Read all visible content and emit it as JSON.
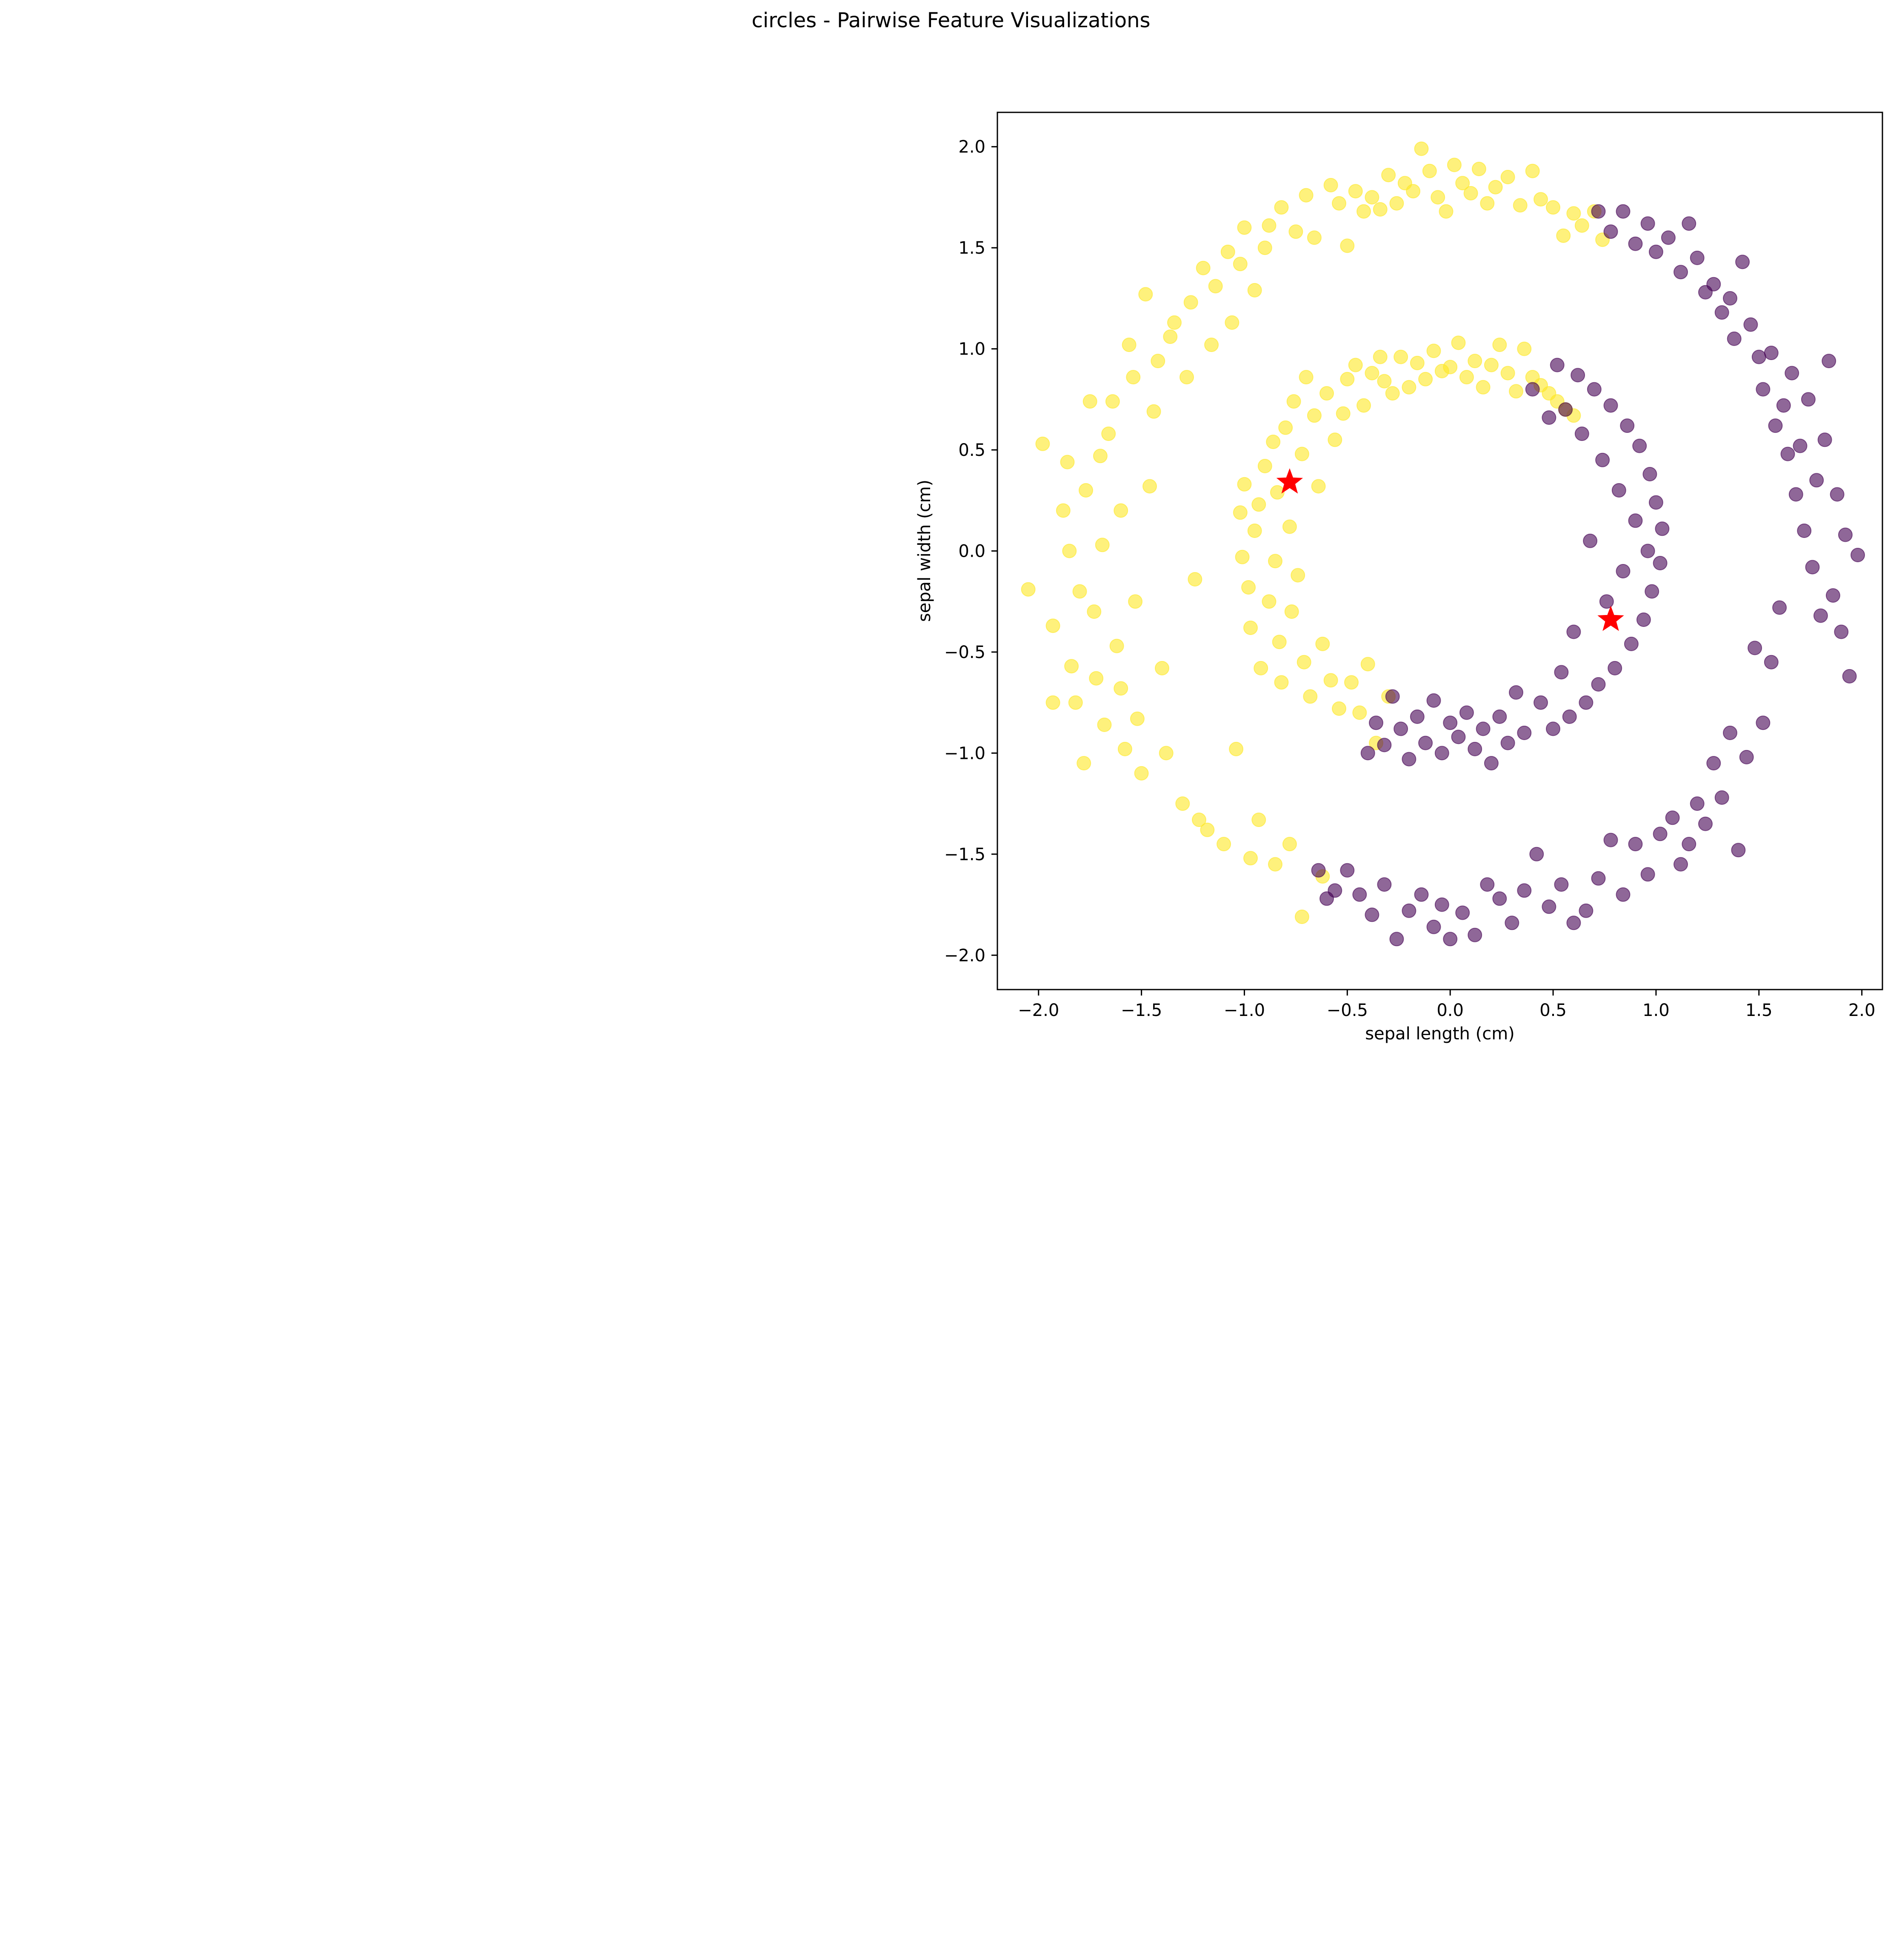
{
  "chart_data": {
    "type": "scatter",
    "title": "circles - Pairwise Feature Visualizations",
    "xlabel": "sepal length (cm)",
    "ylabel": "sepal width (cm)",
    "xlim": [
      -2.2,
      2.1
    ],
    "ylim": [
      -2.17,
      2.17
    ],
    "xticks": [
      -2.0,
      -1.5,
      -1.0,
      -0.5,
      0.0,
      0.5,
      1.0,
      1.5,
      2.0
    ],
    "xtick_labels": [
      "−2.0",
      "−1.5",
      "−1.0",
      "−0.5",
      "0.0",
      "0.5",
      "1.0",
      "1.5",
      "2.0"
    ],
    "yticks": [
      2.0,
      1.5,
      1.0,
      0.5,
      0.0,
      -0.5,
      -1.0,
      -1.5,
      -2.0
    ],
    "ytick_labels": [
      "2.0",
      "1.5",
      "1.0",
      "0.5",
      "0.0",
      "−0.5",
      "−1.0",
      "−1.5",
      "−2.0"
    ],
    "grid": false,
    "colors": {
      "cluster_0": "#fde725",
      "cluster_1": "#440154",
      "centroid": "#ff0000"
    },
    "point_alpha": 0.6,
    "series": [
      {
        "color": "#fde725",
        "points": [
          [
            -1.98,
            0.53
          ],
          [
            -2.05,
            -0.19
          ],
          [
            -1.93,
            -0.37
          ],
          [
            -1.93,
            -0.75
          ],
          [
            -1.88,
            0.2
          ],
          [
            -1.86,
            0.44
          ],
          [
            -1.85,
            0.0
          ],
          [
            -1.84,
            -0.57
          ],
          [
            -1.82,
            -0.75
          ],
          [
            -1.8,
            -0.2
          ],
          [
            -1.78,
            -1.05
          ],
          [
            -1.77,
            0.3
          ],
          [
            -1.75,
            0.74
          ],
          [
            -1.73,
            -0.3
          ],
          [
            -1.72,
            -0.63
          ],
          [
            -1.7,
            0.47
          ],
          [
            -1.69,
            0.03
          ],
          [
            -1.68,
            -0.86
          ],
          [
            -1.66,
            0.58
          ],
          [
            -1.64,
            0.74
          ],
          [
            -1.62,
            -0.47
          ],
          [
            -1.6,
            0.2
          ],
          [
            -1.6,
            -0.68
          ],
          [
            -1.58,
            -0.98
          ],
          [
            -1.56,
            1.02
          ],
          [
            -1.54,
            0.86
          ],
          [
            -1.53,
            -0.25
          ],
          [
            -1.52,
            -0.83
          ],
          [
            -1.5,
            -1.1
          ],
          [
            -1.48,
            1.27
          ],
          [
            -1.46,
            0.32
          ],
          [
            -1.44,
            0.69
          ],
          [
            -1.42,
            0.94
          ],
          [
            -1.4,
            -0.58
          ],
          [
            -1.38,
            -1.0
          ],
          [
            -1.36,
            1.06
          ],
          [
            -1.34,
            1.13
          ],
          [
            -1.3,
            -1.25
          ],
          [
            -1.28,
            0.86
          ],
          [
            -1.26,
            1.23
          ],
          [
            -1.24,
            -0.14
          ],
          [
            -1.22,
            -1.33
          ],
          [
            -1.2,
            1.4
          ],
          [
            -1.18,
            -1.38
          ],
          [
            -1.16,
            1.02
          ],
          [
            -1.14,
            1.31
          ],
          [
            -1.1,
            -1.45
          ],
          [
            -1.08,
            1.48
          ],
          [
            -1.06,
            1.13
          ],
          [
            -1.04,
            -0.98
          ],
          [
            -1.02,
            1.42
          ],
          [
            -1.0,
            1.6
          ],
          [
            -0.97,
            -1.52
          ],
          [
            -0.95,
            1.29
          ],
          [
            -0.93,
            -1.33
          ],
          [
            -0.9,
            1.5
          ],
          [
            -0.88,
            1.61
          ],
          [
            -0.85,
            -1.55
          ],
          [
            -0.82,
            1.7
          ],
          [
            -0.78,
            -1.45
          ],
          [
            -0.75,
            1.58
          ],
          [
            -0.72,
            -1.81
          ],
          [
            -0.7,
            1.76
          ],
          [
            -0.66,
            1.55
          ],
          [
            -0.62,
            -1.61
          ],
          [
            -0.58,
            1.81
          ],
          [
            -0.54,
            1.72
          ],
          [
            -0.5,
            1.51
          ],
          [
            -0.46,
            1.78
          ],
          [
            -0.42,
            1.68
          ],
          [
            -0.38,
            1.75
          ],
          [
            -0.34,
            1.69
          ],
          [
            -0.3,
            1.86
          ],
          [
            -0.26,
            1.72
          ],
          [
            -0.22,
            1.82
          ],
          [
            -0.18,
            1.78
          ],
          [
            -0.14,
            1.99
          ],
          [
            -0.1,
            1.88
          ],
          [
            -0.06,
            1.75
          ],
          [
            -0.02,
            1.68
          ],
          [
            0.02,
            1.91
          ],
          [
            0.06,
            1.82
          ],
          [
            0.1,
            1.77
          ],
          [
            0.14,
            1.89
          ],
          [
            0.18,
            1.72
          ],
          [
            0.22,
            1.8
          ],
          [
            0.28,
            1.85
          ],
          [
            0.34,
            1.71
          ],
          [
            0.4,
            1.88
          ],
          [
            0.44,
            1.74
          ],
          [
            0.5,
            1.7
          ],
          [
            0.55,
            1.56
          ],
          [
            0.6,
            1.67
          ],
          [
            0.64,
            1.61
          ],
          [
            0.7,
            1.68
          ],
          [
            0.74,
            1.54
          ],
          [
            -1.0,
            0.33
          ],
          [
            -1.02,
            0.19
          ],
          [
            -1.01,
            -0.03
          ],
          [
            -0.98,
            -0.18
          ],
          [
            -0.97,
            -0.38
          ],
          [
            -0.95,
            0.1
          ],
          [
            -0.93,
            0.23
          ],
          [
            -0.92,
            -0.58
          ],
          [
            -0.9,
            0.42
          ],
          [
            -0.88,
            -0.25
          ],
          [
            -0.86,
            0.54
          ],
          [
            -0.85,
            -0.05
          ],
          [
            -0.84,
            0.29
          ],
          [
            -0.83,
            -0.45
          ],
          [
            -0.82,
            -0.65
          ],
          [
            -0.8,
            0.61
          ],
          [
            -0.78,
            0.12
          ],
          [
            -0.77,
            -0.3
          ],
          [
            -0.76,
            0.74
          ],
          [
            -0.74,
            -0.12
          ],
          [
            -0.72,
            0.48
          ],
          [
            -0.71,
            -0.55
          ],
          [
            -0.7,
            0.86
          ],
          [
            -0.68,
            -0.72
          ],
          [
            -0.66,
            0.67
          ],
          [
            -0.64,
            0.32
          ],
          [
            -0.62,
            -0.46
          ],
          [
            -0.6,
            0.78
          ],
          [
            -0.58,
            -0.64
          ],
          [
            -0.56,
            0.55
          ],
          [
            -0.54,
            -0.78
          ],
          [
            -0.52,
            0.68
          ],
          [
            -0.5,
            0.85
          ],
          [
            -0.48,
            -0.65
          ],
          [
            -0.46,
            0.92
          ],
          [
            -0.44,
            -0.8
          ],
          [
            -0.42,
            0.72
          ],
          [
            -0.4,
            -0.56
          ],
          [
            -0.38,
            0.88
          ],
          [
            -0.36,
            -0.95
          ],
          [
            -0.34,
            0.96
          ],
          [
            -0.32,
            0.84
          ],
          [
            -0.3,
            -0.72
          ],
          [
            -0.28,
            0.78
          ],
          [
            -0.24,
            0.96
          ],
          [
            -0.2,
            0.81
          ],
          [
            -0.16,
            0.93
          ],
          [
            -0.12,
            0.85
          ],
          [
            -0.08,
            0.99
          ],
          [
            -0.04,
            0.89
          ],
          [
            0.0,
            0.91
          ],
          [
            0.04,
            1.03
          ],
          [
            0.08,
            0.86
          ],
          [
            0.12,
            0.94
          ],
          [
            0.16,
            0.81
          ],
          [
            0.2,
            0.92
          ],
          [
            0.24,
            1.02
          ],
          [
            0.28,
            0.88
          ],
          [
            0.32,
            0.79
          ],
          [
            0.36,
            1.0
          ],
          [
            0.4,
            0.86
          ],
          [
            0.44,
            0.82
          ],
          [
            0.48,
            0.78
          ],
          [
            0.52,
            0.74
          ],
          [
            0.56,
            0.7
          ],
          [
            0.6,
            0.67
          ]
        ]
      },
      {
        "color": "#440154",
        "points": [
          [
            0.72,
            1.68
          ],
          [
            0.78,
            1.58
          ],
          [
            0.84,
            1.68
          ],
          [
            0.9,
            1.52
          ],
          [
            0.96,
            1.62
          ],
          [
            1.0,
            1.48
          ],
          [
            1.06,
            1.55
          ],
          [
            1.12,
            1.38
          ],
          [
            1.16,
            1.62
          ],
          [
            1.2,
            1.45
          ],
          [
            1.24,
            1.28
          ],
          [
            1.28,
            1.32
          ],
          [
            1.32,
            1.18
          ],
          [
            1.36,
            1.25
          ],
          [
            1.38,
            1.05
          ],
          [
            1.42,
            1.43
          ],
          [
            1.46,
            1.12
          ],
          [
            1.5,
            0.96
          ],
          [
            1.52,
            0.8
          ],
          [
            1.56,
            0.98
          ],
          [
            1.58,
            0.62
          ],
          [
            1.62,
            0.72
          ],
          [
            1.64,
            0.48
          ],
          [
            1.66,
            0.88
          ],
          [
            1.68,
            0.28
          ],
          [
            1.7,
            0.52
          ],
          [
            1.72,
            0.1
          ],
          [
            1.74,
            0.75
          ],
          [
            1.76,
            -0.08
          ],
          [
            1.78,
            0.35
          ],
          [
            1.8,
            -0.32
          ],
          [
            1.82,
            0.55
          ],
          [
            1.84,
            0.94
          ],
          [
            1.86,
            -0.22
          ],
          [
            1.88,
            0.28
          ],
          [
            1.9,
            -0.4
          ],
          [
            1.92,
            0.08
          ],
          [
            1.94,
            -0.62
          ],
          [
            1.98,
            -0.02
          ],
          [
            1.6,
            -0.28
          ],
          [
            1.56,
            -0.55
          ],
          [
            1.52,
            -0.85
          ],
          [
            1.48,
            -0.48
          ],
          [
            1.44,
            -1.02
          ],
          [
            1.4,
            -1.48
          ],
          [
            1.36,
            -0.9
          ],
          [
            1.32,
            -1.22
          ],
          [
            1.28,
            -1.05
          ],
          [
            1.24,
            -1.35
          ],
          [
            1.2,
            -1.25
          ],
          [
            1.16,
            -1.45
          ],
          [
            1.12,
            -1.55
          ],
          [
            1.08,
            -1.32
          ],
          [
            1.02,
            -1.4
          ],
          [
            0.96,
            -1.6
          ],
          [
            0.9,
            -1.45
          ],
          [
            0.84,
            -1.7
          ],
          [
            0.78,
            -1.43
          ],
          [
            0.72,
            -1.62
          ],
          [
            0.66,
            -1.78
          ],
          [
            0.6,
            -1.84
          ],
          [
            0.54,
            -1.65
          ],
          [
            0.48,
            -1.76
          ],
          [
            0.42,
            -1.5
          ],
          [
            0.36,
            -1.68
          ],
          [
            0.3,
            -1.84
          ],
          [
            0.24,
            -1.72
          ],
          [
            0.18,
            -1.65
          ],
          [
            0.12,
            -1.9
          ],
          [
            0.06,
            -1.79
          ],
          [
            0.0,
            -1.92
          ],
          [
            -0.04,
            -1.75
          ],
          [
            -0.08,
            -1.86
          ],
          [
            -0.14,
            -1.7
          ],
          [
            -0.2,
            -1.78
          ],
          [
            -0.26,
            -1.92
          ],
          [
            -0.32,
            -1.65
          ],
          [
            -0.38,
            -1.8
          ],
          [
            -0.44,
            -1.7
          ],
          [
            -0.5,
            -1.58
          ],
          [
            -0.56,
            -1.68
          ],
          [
            -0.6,
            -1.72
          ],
          [
            -0.64,
            -1.58
          ],
          [
            1.03,
            0.11
          ],
          [
            1.02,
            -0.06
          ],
          [
            1.0,
            0.24
          ],
          [
            0.98,
            -0.2
          ],
          [
            0.97,
            0.38
          ],
          [
            0.96,
            0.0
          ],
          [
            0.94,
            -0.34
          ],
          [
            0.92,
            0.52
          ],
          [
            0.9,
            0.15
          ],
          [
            0.88,
            -0.46
          ],
          [
            0.86,
            0.62
          ],
          [
            0.84,
            -0.1
          ],
          [
            0.82,
            0.3
          ],
          [
            0.8,
            -0.58
          ],
          [
            0.78,
            0.72
          ],
          [
            0.76,
            -0.25
          ],
          [
            0.74,
            0.45
          ],
          [
            0.72,
            -0.66
          ],
          [
            0.7,
            0.8
          ],
          [
            0.68,
            0.05
          ],
          [
            0.66,
            -0.75
          ],
          [
            0.64,
            0.58
          ],
          [
            0.62,
            0.87
          ],
          [
            0.6,
            -0.4
          ],
          [
            0.58,
            -0.82
          ],
          [
            0.56,
            0.7
          ],
          [
            0.54,
            -0.6
          ],
          [
            0.52,
            0.92
          ],
          [
            0.5,
            -0.88
          ],
          [
            0.48,
            0.66
          ],
          [
            0.44,
            -0.75
          ],
          [
            0.4,
            0.8
          ],
          [
            0.36,
            -0.9
          ],
          [
            0.32,
            -0.7
          ],
          [
            0.28,
            -0.95
          ],
          [
            0.24,
            -0.82
          ],
          [
            0.2,
            -1.05
          ],
          [
            0.16,
            -0.88
          ],
          [
            0.12,
            -0.98
          ],
          [
            0.08,
            -0.8
          ],
          [
            0.04,
            -0.92
          ],
          [
            0.0,
            -0.85
          ],
          [
            -0.04,
            -1.0
          ],
          [
            -0.08,
            -0.74
          ],
          [
            -0.12,
            -0.95
          ],
          [
            -0.16,
            -0.82
          ],
          [
            -0.2,
            -1.03
          ],
          [
            -0.24,
            -0.88
          ],
          [
            -0.28,
            -0.72
          ],
          [
            -0.32,
            -0.96
          ],
          [
            -0.36,
            -0.85
          ],
          [
            -0.4,
            -1.0
          ]
        ]
      }
    ],
    "centroids": [
      [
        -0.78,
        0.34
      ],
      [
        0.78,
        -0.34
      ]
    ]
  }
}
